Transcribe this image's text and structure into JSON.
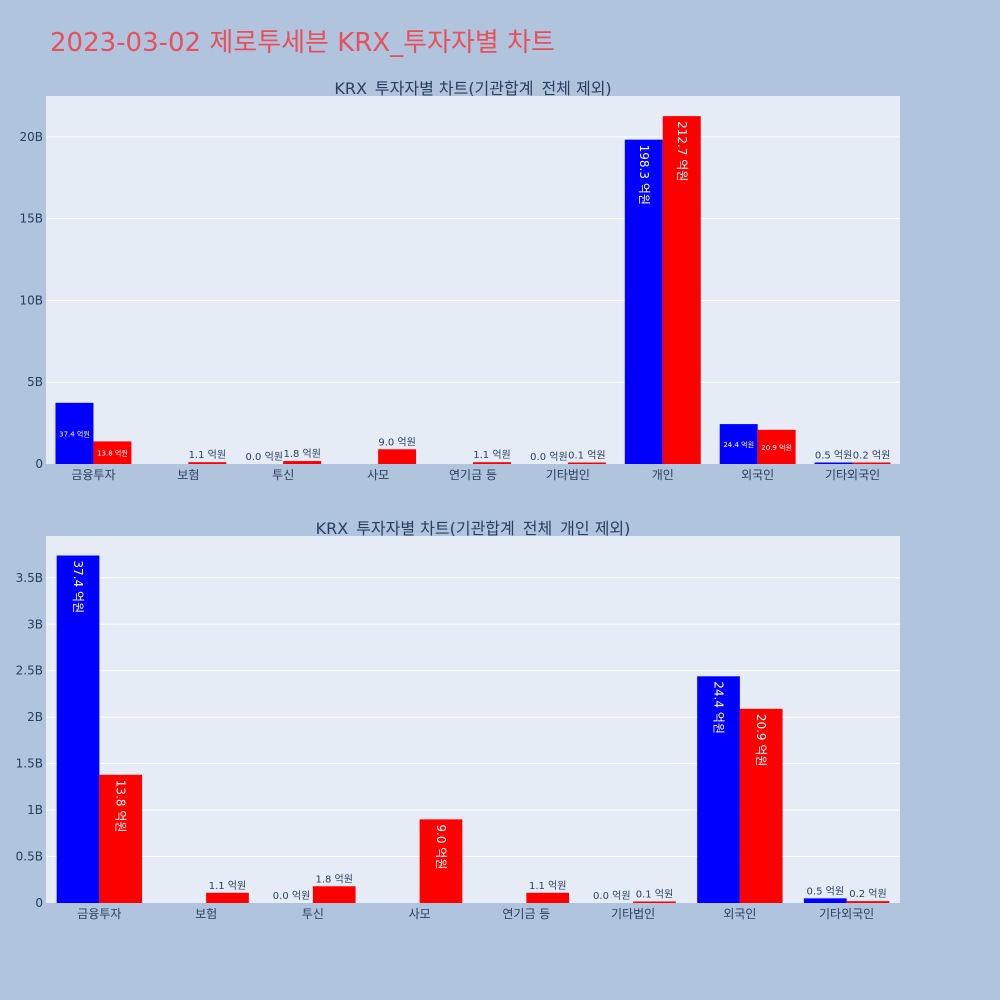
{
  "title": "2023-03-02 제로투세븐 KRX_투자자별 차트",
  "colors": {
    "buy": "#0000ff",
    "sell": "#ff0000",
    "plot_bg": "#e5ecf6",
    "page_bg": "#b0c4de",
    "title": "#e8505b"
  },
  "chart_data": [
    {
      "type": "bar",
      "title": "KRX_투자자별 차트(기관합계_전체 제외)",
      "categories": [
        "금융투자",
        "보험",
        "투신",
        "사모",
        "연기금 등",
        "기타법인",
        "개인",
        "외국인",
        "기타외국인"
      ],
      "series": [
        {
          "values": [
            3740000000,
            0,
            0,
            0,
            0,
            0,
            19830000000,
            2440000000,
            50000000
          ],
          "labels": [
            "37.4 억원",
            "",
            "0.0 억원",
            "",
            "",
            "0.0 억원",
            "198.3 억원",
            "24.4 억원",
            "0.5 억원"
          ]
        },
        {
          "values": [
            1380000000,
            110000000,
            180000000,
            900000000,
            110000000,
            10000000,
            21270000000,
            2090000000,
            20000000
          ],
          "labels": [
            "13.8 억원",
            "1.1 억원",
            "1.8 억원",
            "9.0 억원",
            "1.1 억원",
            "0.1 억원",
            "212.7 억원",
            "20.9 억원",
            "0.2 억원"
          ]
        }
      ],
      "ylim": [
        0,
        22500000000
      ],
      "yticks": [
        0,
        5000000000,
        10000000000,
        15000000000,
        20000000000
      ],
      "ytick_labels": [
        "0",
        "5B",
        "10B",
        "15B",
        "20B"
      ],
      "grid": true
    },
    {
      "type": "bar",
      "title": "KRX_투자자별 차트(기관합계_전체_개인 제외)",
      "categories": [
        "금융투자",
        "보험",
        "투신",
        "사모",
        "연기금 등",
        "기타법인",
        "외국인",
        "기타외국인"
      ],
      "series": [
        {
          "values": [
            3740000000,
            0,
            0,
            0,
            0,
            0,
            2440000000,
            50000000
          ],
          "labels": [
            "37.4 억원",
            "",
            "0.0 억원",
            "",
            "",
            "0.0 억원",
            "24.4 억원",
            "0.5 억원"
          ]
        },
        {
          "values": [
            1380000000,
            110000000,
            180000000,
            900000000,
            110000000,
            10000000,
            2090000000,
            20000000
          ],
          "labels": [
            "13.8 억원",
            "1.1 억원",
            "1.8 억원",
            "9.0 억원",
            "1.1 억원",
            "0.1 억원",
            "20.9 억원",
            "0.2 억원"
          ]
        }
      ],
      "ylim": [
        0,
        3950000000
      ],
      "yticks": [
        0,
        500000000,
        1000000000,
        1500000000,
        2000000000,
        2500000000,
        3000000000,
        3500000000
      ],
      "ytick_labels": [
        "0",
        "0.5B",
        "1B",
        "1.5B",
        "2B",
        "2.5B",
        "3B",
        "3.5B"
      ],
      "grid": true
    }
  ]
}
